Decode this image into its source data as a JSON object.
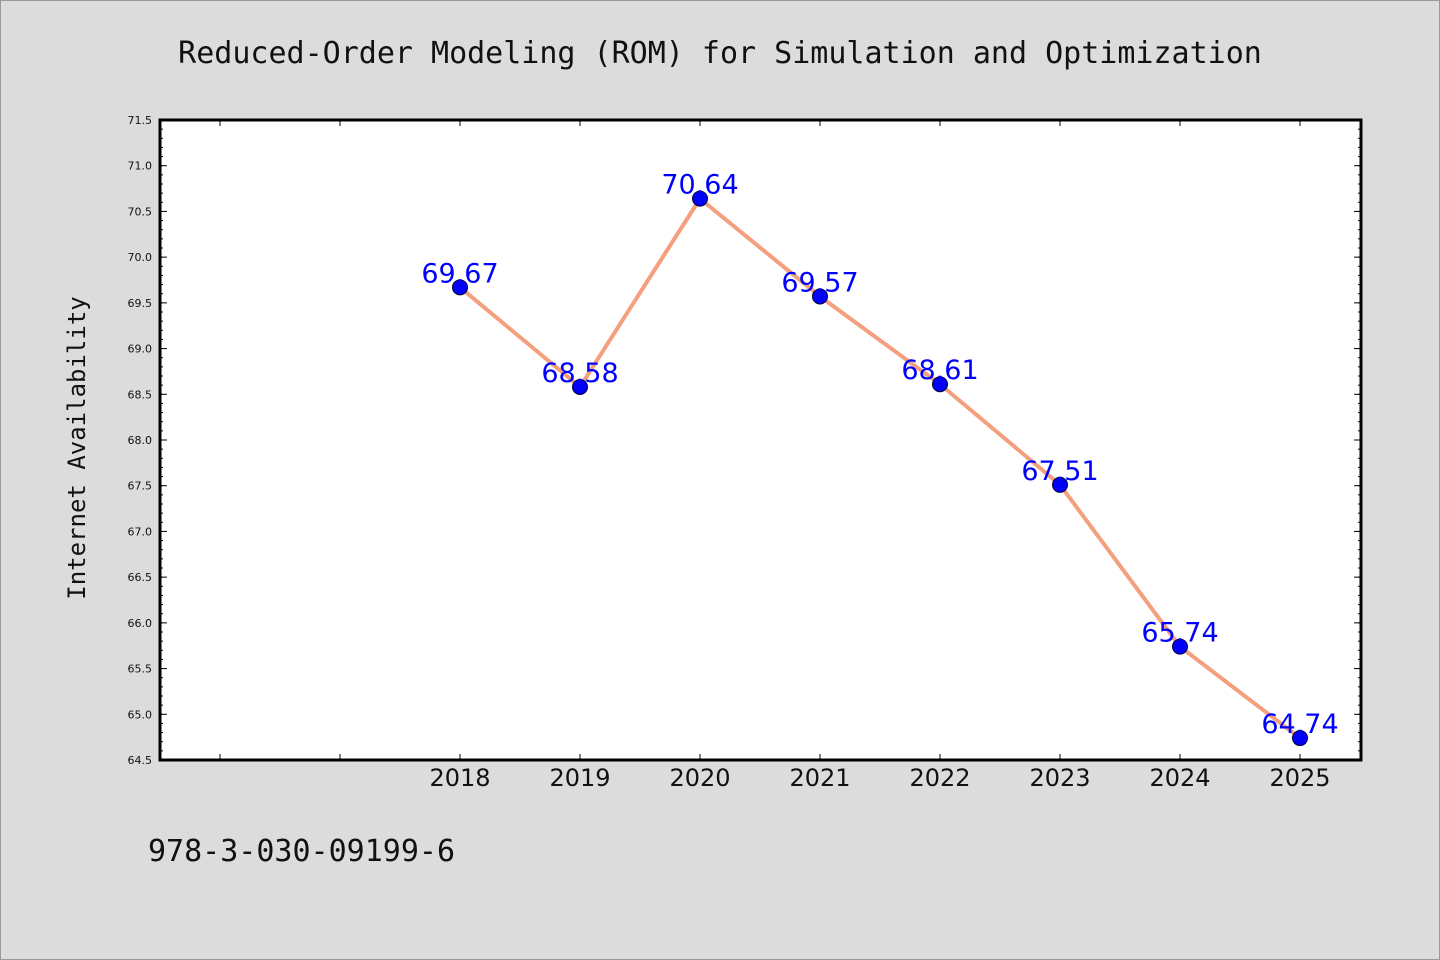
{
  "page": {
    "isbn": "978-3-030-09199-6"
  },
  "chart_data": {
    "type": "line",
    "title": "Reduced-Order Modeling (ROM) for Simulation and Optimization",
    "xlabel": "",
    "ylabel": "Internet Availability",
    "categories": [
      "2018",
      "2019",
      "2020",
      "2021",
      "2022",
      "2023",
      "2024",
      "2025"
    ],
    "values": [
      69.67,
      68.58,
      70.64,
      69.57,
      68.61,
      67.51,
      65.74,
      64.74
    ],
    "data_labels": [
      "69.67",
      "68.58",
      "70.64",
      "69.57",
      "68.61",
      "67.51",
      "65.74",
      "64.74"
    ],
    "ylim": [
      64.5,
      71.5
    ],
    "yticks": [
      "64.5",
      "65.0",
      "65.5",
      "66.0",
      "66.5",
      "67.0",
      "67.5",
      "68.0",
      "68.5",
      "69.0",
      "69.5",
      "70.0",
      "70.5",
      "71.0",
      "71.5"
    ],
    "grid": false,
    "legend": "none",
    "colors": {
      "line": "#f4a07f",
      "marker": "#0000ff",
      "label": "#0000ff",
      "background": "#dcdcdc",
      "plot_background": "#ffffff"
    }
  }
}
